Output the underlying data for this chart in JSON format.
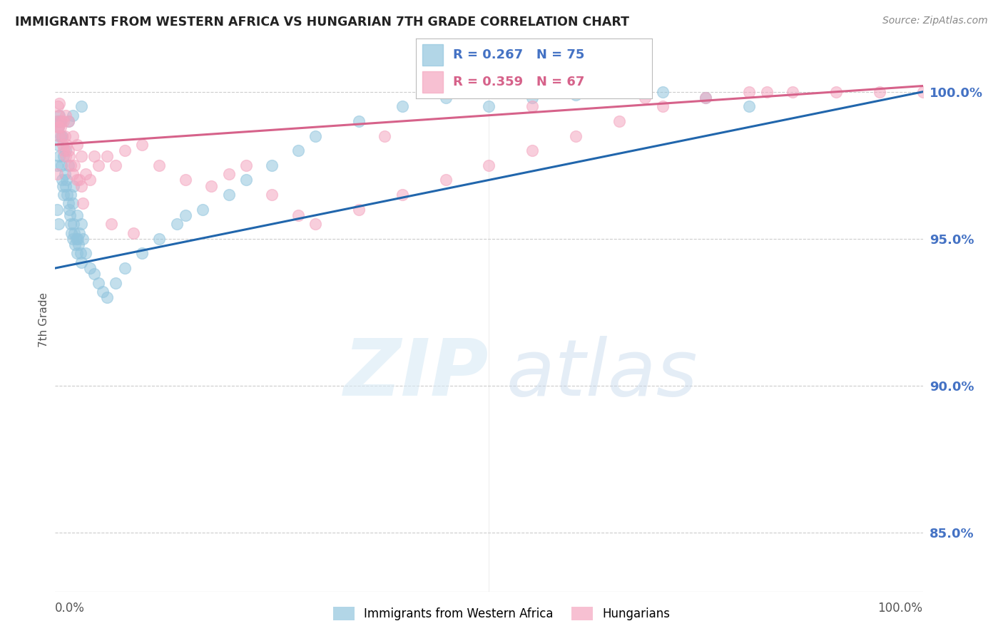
{
  "title": "IMMIGRANTS FROM WESTERN AFRICA VS HUNGARIAN 7TH GRADE CORRELATION CHART",
  "source": "Source: ZipAtlas.com",
  "ylabel": "7th Grade",
  "right_yticks": [
    85.0,
    90.0,
    95.0,
    100.0
  ],
  "xlim": [
    0.0,
    100.0
  ],
  "ylim": [
    83.0,
    101.5
  ],
  "blue_R": 0.267,
  "blue_N": 75,
  "pink_R": 0.359,
  "pink_N": 67,
  "blue_color": "#92c5de",
  "pink_color": "#f4a6c0",
  "blue_line_color": "#2166ac",
  "pink_line_color": "#d6628a",
  "legend_label_blue": "Immigrants from Western Africa",
  "legend_label_pink": "Hungarians",
  "right_tick_color": "#4472c4",
  "blue_line_x0": 0.0,
  "blue_line_y0": 94.0,
  "blue_line_x1": 100.0,
  "blue_line_y1": 100.0,
  "pink_line_x0": 0.0,
  "pink_line_y0": 98.2,
  "pink_line_x1": 100.0,
  "pink_line_y1": 100.2,
  "blue_scatter_x": [
    0.2,
    0.3,
    0.3,
    0.4,
    0.5,
    0.5,
    0.6,
    0.7,
    0.8,
    0.9,
    1.0,
    1.0,
    1.1,
    1.2,
    1.2,
    1.3,
    1.4,
    1.5,
    1.5,
    1.6,
    1.7,
    1.8,
    1.8,
    1.9,
    2.0,
    2.0,
    2.1,
    2.1,
    2.2,
    2.3,
    2.4,
    2.5,
    2.5,
    2.6,
    2.7,
    2.8,
    2.9,
    3.0,
    3.0,
    3.2,
    3.5,
    4.0,
    4.5,
    5.0,
    5.5,
    6.0,
    7.0,
    8.0,
    10.0,
    12.0,
    14.0,
    15.0,
    17.0,
    20.0,
    22.0,
    25.0,
    28.0,
    30.0,
    35.0,
    40.0,
    45.0,
    50.0,
    55.0,
    60.0,
    65.0,
    70.0,
    75.0,
    80.0,
    0.2,
    0.4,
    0.6,
    0.8,
    1.5,
    2.0,
    3.0
  ],
  "blue_scatter_y": [
    97.5,
    99.0,
    98.2,
    98.8,
    97.8,
    99.2,
    98.5,
    97.5,
    97.0,
    96.8,
    96.5,
    97.8,
    97.2,
    96.8,
    98.0,
    97.0,
    96.5,
    96.2,
    97.5,
    96.0,
    95.8,
    95.5,
    96.5,
    95.2,
    95.0,
    96.2,
    95.5,
    96.8,
    95.2,
    94.8,
    95.0,
    94.5,
    95.8,
    95.0,
    94.8,
    95.2,
    94.5,
    94.2,
    95.5,
    95.0,
    94.5,
    94.0,
    93.8,
    93.5,
    93.2,
    93.0,
    93.5,
    94.0,
    94.5,
    95.0,
    95.5,
    95.8,
    96.0,
    96.5,
    97.0,
    97.5,
    98.0,
    98.5,
    99.0,
    99.5,
    99.8,
    99.5,
    99.8,
    99.9,
    100.0,
    100.0,
    99.8,
    99.5,
    96.0,
    95.5,
    99.0,
    98.5,
    99.0,
    99.2,
    99.5
  ],
  "pink_scatter_x": [
    0.2,
    0.3,
    0.3,
    0.4,
    0.5,
    0.5,
    0.6,
    0.7,
    0.8,
    0.9,
    1.0,
    1.0,
    1.1,
    1.2,
    1.2,
    1.3,
    1.5,
    1.5,
    1.6,
    1.8,
    2.0,
    2.0,
    2.2,
    2.5,
    2.5,
    2.8,
    3.0,
    3.0,
    3.5,
    4.0,
    5.0,
    6.0,
    7.0,
    8.0,
    10.0,
    12.0,
    15.0,
    18.0,
    20.0,
    25.0,
    28.0,
    30.0,
    35.0,
    40.0,
    45.0,
    50.0,
    55.0,
    60.0,
    65.0,
    70.0,
    75.0,
    80.0,
    85.0,
    90.0,
    95.0,
    100.0,
    0.2,
    0.4,
    3.2,
    4.5,
    6.5,
    9.0,
    22.0,
    38.0,
    55.0,
    68.0,
    82.0
  ],
  "pink_scatter_y": [
    99.0,
    99.5,
    98.8,
    99.2,
    98.5,
    99.6,
    98.8,
    99.0,
    98.5,
    98.2,
    98.0,
    99.0,
    98.5,
    97.8,
    99.2,
    98.2,
    98.0,
    99.0,
    97.8,
    97.5,
    97.2,
    98.5,
    97.5,
    97.0,
    98.2,
    97.0,
    96.8,
    97.8,
    97.2,
    97.0,
    97.5,
    97.8,
    97.5,
    98.0,
    98.2,
    97.5,
    97.0,
    96.8,
    97.2,
    96.5,
    95.8,
    95.5,
    96.0,
    96.5,
    97.0,
    97.5,
    98.0,
    98.5,
    99.0,
    99.5,
    99.8,
    100.0,
    100.0,
    100.0,
    100.0,
    100.0,
    97.2,
    98.8,
    96.2,
    97.8,
    95.5,
    95.2,
    97.5,
    98.5,
    99.5,
    99.8,
    100.0
  ]
}
